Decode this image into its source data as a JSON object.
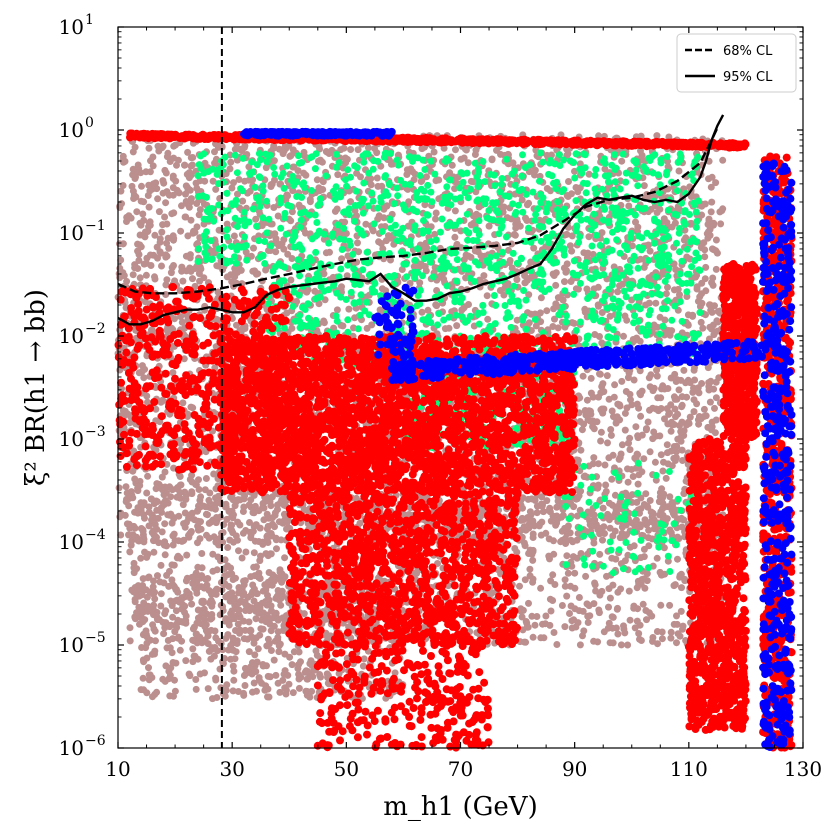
{
  "chart_data": {
    "type": "scatter",
    "xlabel": "m_h1 (GeV)",
    "ylabel": "ξ² BR(h1 → bb)",
    "xlim": [
      10,
      130
    ],
    "ylim": [
      1e-06,
      10
    ],
    "yscale": "log",
    "x_ticks": [
      10,
      30,
      50,
      70,
      90,
      110,
      130
    ],
    "x_tick_labels": [
      "10",
      "30",
      "50",
      "70",
      "90",
      "110",
      "130"
    ],
    "y_ticks": [
      1e-06,
      1e-05,
      0.0001,
      0.001,
      0.01,
      0.1,
      1,
      10
    ],
    "y_tick_labels": [
      {
        "base": "10",
        "exp": "−6"
      },
      {
        "base": "10",
        "exp": "−5"
      },
      {
        "base": "10",
        "exp": "−4"
      },
      {
        "base": "10",
        "exp": "−3"
      },
      {
        "base": "10",
        "exp": "−2"
      },
      {
        "base": "10",
        "exp": "−1"
      },
      {
        "base": "10",
        "exp": "0"
      },
      {
        "base": "10",
        "exp": "1"
      }
    ],
    "vertical_line": {
      "x": 28.2,
      "style": "dashed",
      "color": "#000000"
    },
    "legend": [
      {
        "label": "68% CL",
        "style": "dashed",
        "color": "#000000"
      },
      {
        "label": "95% CL",
        "style": "solid",
        "color": "#000000"
      }
    ],
    "legend_position": "top-right",
    "series": [
      {
        "name": "68% CL",
        "kind": "line",
        "style": "dashed",
        "color": "#000000",
        "x": [
          10,
          13,
          16,
          20,
          24,
          28,
          32,
          36,
          40,
          44,
          48,
          52,
          56,
          60,
          64,
          68,
          72,
          76,
          80,
          84,
          88,
          92,
          96,
          100,
          104,
          108,
          112,
          114,
          115
        ],
        "y": [
          0.032,
          0.027,
          0.026,
          0.026,
          0.027,
          0.029,
          0.032,
          0.036,
          0.04,
          0.045,
          0.05,
          0.055,
          0.058,
          0.06,
          0.064,
          0.07,
          0.072,
          0.075,
          0.08,
          0.095,
          0.13,
          0.18,
          0.21,
          0.22,
          0.25,
          0.32,
          0.48,
          0.8,
          1.05
        ]
      },
      {
        "name": "95% CL",
        "kind": "line",
        "style": "solid",
        "color": "#000000",
        "x": [
          10,
          12,
          14,
          16,
          18,
          20,
          22,
          24,
          26,
          28,
          30,
          32,
          34,
          36,
          38,
          40,
          42,
          44,
          46,
          48,
          50,
          52,
          54,
          56,
          58,
          60,
          62,
          64,
          66,
          68,
          70,
          72,
          74,
          76,
          78,
          80,
          82,
          84,
          86,
          88,
          90,
          92,
          94,
          96,
          98,
          100,
          102,
          104,
          106,
          108,
          110,
          112,
          113,
          114,
          115,
          116
        ],
        "y": [
          0.015,
          0.013,
          0.013,
          0.014,
          0.016,
          0.017,
          0.018,
          0.018,
          0.019,
          0.018,
          0.017,
          0.017,
          0.019,
          0.025,
          0.028,
          0.03,
          0.031,
          0.032,
          0.033,
          0.034,
          0.036,
          0.035,
          0.034,
          0.04,
          0.03,
          0.026,
          0.022,
          0.022,
          0.023,
          0.026,
          0.027,
          0.029,
          0.032,
          0.034,
          0.036,
          0.04,
          0.045,
          0.05,
          0.07,
          0.11,
          0.15,
          0.19,
          0.22,
          0.21,
          0.22,
          0.23,
          0.21,
          0.2,
          0.21,
          0.2,
          0.24,
          0.35,
          0.5,
          0.8,
          1.1,
          1.4
        ]
      },
      {
        "name": "brown points",
        "kind": "scatter",
        "color": "#bc8f8f",
        "size": 3.5,
        "density": 6000,
        "regions": [
          {
            "x": [
              10,
              116
            ],
            "y": [
              0.0001,
              0.9
            ],
            "weight": 3
          },
          {
            "x": [
              12,
              116
            ],
            "y": [
              1e-05,
              0.0003
            ],
            "weight": 1
          },
          {
            "x": [
              14,
              60
            ],
            "y": [
              3e-06,
              5e-05
            ],
            "weight": 0.4
          }
        ]
      },
      {
        "name": "green points",
        "kind": "scatter",
        "color": "#00ff7f",
        "size": 3.5,
        "density": 1600,
        "regions": [
          {
            "x": [
              24,
              112
            ],
            "y": [
              0.05,
              0.6
            ],
            "weight": 2
          },
          {
            "x": [
              36,
              112
            ],
            "y": [
              0.005,
              0.05
            ],
            "weight": 1.5
          },
          {
            "x": [
              60,
              90
            ],
            "y": [
              0.0008,
              0.005
            ],
            "weight": 0.8
          },
          {
            "x": [
              88,
              112
            ],
            "y": [
              5e-05,
              0.0006
            ],
            "weight": 0.2
          }
        ]
      },
      {
        "name": "red points",
        "kind": "scatter",
        "color": "#ff0000",
        "size": 4,
        "density": 6500,
        "regions": [
          {
            "x": [
              28,
              90
            ],
            "y": [
              0.0003,
              0.01
            ],
            "weight": 3
          },
          {
            "x": [
              40,
              80
            ],
            "y": [
              1e-05,
              0.0003
            ],
            "weight": 1.2
          },
          {
            "x": [
              45,
              75
            ],
            "y": [
              1e-06,
              1e-05
            ],
            "weight": 0.3
          },
          {
            "x": [
              10,
              40
            ],
            "y": [
              0.0005,
              0.03
            ],
            "weight": 0.6
          },
          {
            "x": [
              110,
              120
            ],
            "y": [
              1.5e-06,
              0.001
            ],
            "weight": 1
          },
          {
            "x": [
              116,
              122
            ],
            "y": [
              0.001,
              0.05
            ],
            "weight": 0.6
          }
        ],
        "top_band": {
          "x": [
            12,
            120
          ],
          "y_start": 0.9,
          "y_end": 0.72
        },
        "right_column": {
          "x": [
            123,
            128
          ],
          "y": [
            1e-06,
            0.6
          ]
        }
      },
      {
        "name": "blue points",
        "kind": "scatter",
        "color": "#0000ff",
        "size": 4,
        "density": 1400,
        "top_band": {
          "x": [
            32,
            58
          ],
          "y": [
            0.88,
            0.96
          ]
        },
        "stripe": {
          "x": [
            58,
            123
          ],
          "y_start": 0.0045,
          "y_end": 0.0075
        },
        "cluster": {
          "x": [
            55,
            62
          ],
          "y": [
            0.005,
            0.03
          ]
        },
        "right_column": {
          "x": [
            123,
            128
          ],
          "y": [
            1e-06,
            0.5
          ]
        }
      }
    ]
  }
}
